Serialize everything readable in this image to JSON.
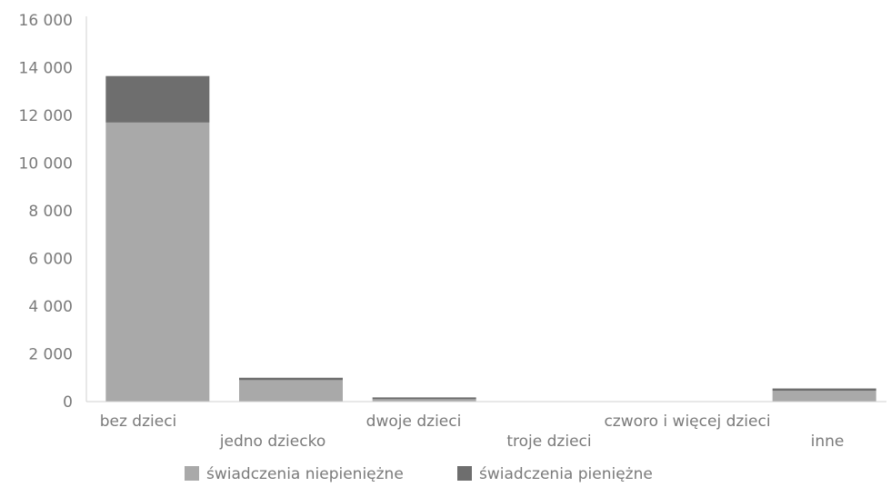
{
  "chart_data": {
    "type": "bar",
    "stacked": true,
    "title": "",
    "xlabel": "",
    "ylabel": "",
    "ylim": [
      0,
      16000
    ],
    "yticks": [
      0,
      2000,
      4000,
      6000,
      8000,
      10000,
      12000,
      14000,
      16000
    ],
    "ytick_labels": [
      "0",
      "2 000",
      "4 000",
      "6 000",
      "8 000",
      "10 000",
      "12 000",
      "14 000",
      "16 000"
    ],
    "categories": [
      "bez dzieci",
      "jedno dziecko",
      "dwoje dzieci",
      "troje dzieci",
      "czworo i więcej dzieci",
      "inne"
    ],
    "series": [
      {
        "name": "świadczenia niepieniężne",
        "color": "#a9a9a9",
        "values": [
          11700,
          900,
          100,
          0,
          0,
          450
        ]
      },
      {
        "name": "świadczenia pieniężne",
        "color": "#6e6e6e",
        "values": [
          1950,
          100,
          50,
          0,
          0,
          100
        ]
      }
    ],
    "grid": false,
    "legend_position": "bottom"
  }
}
